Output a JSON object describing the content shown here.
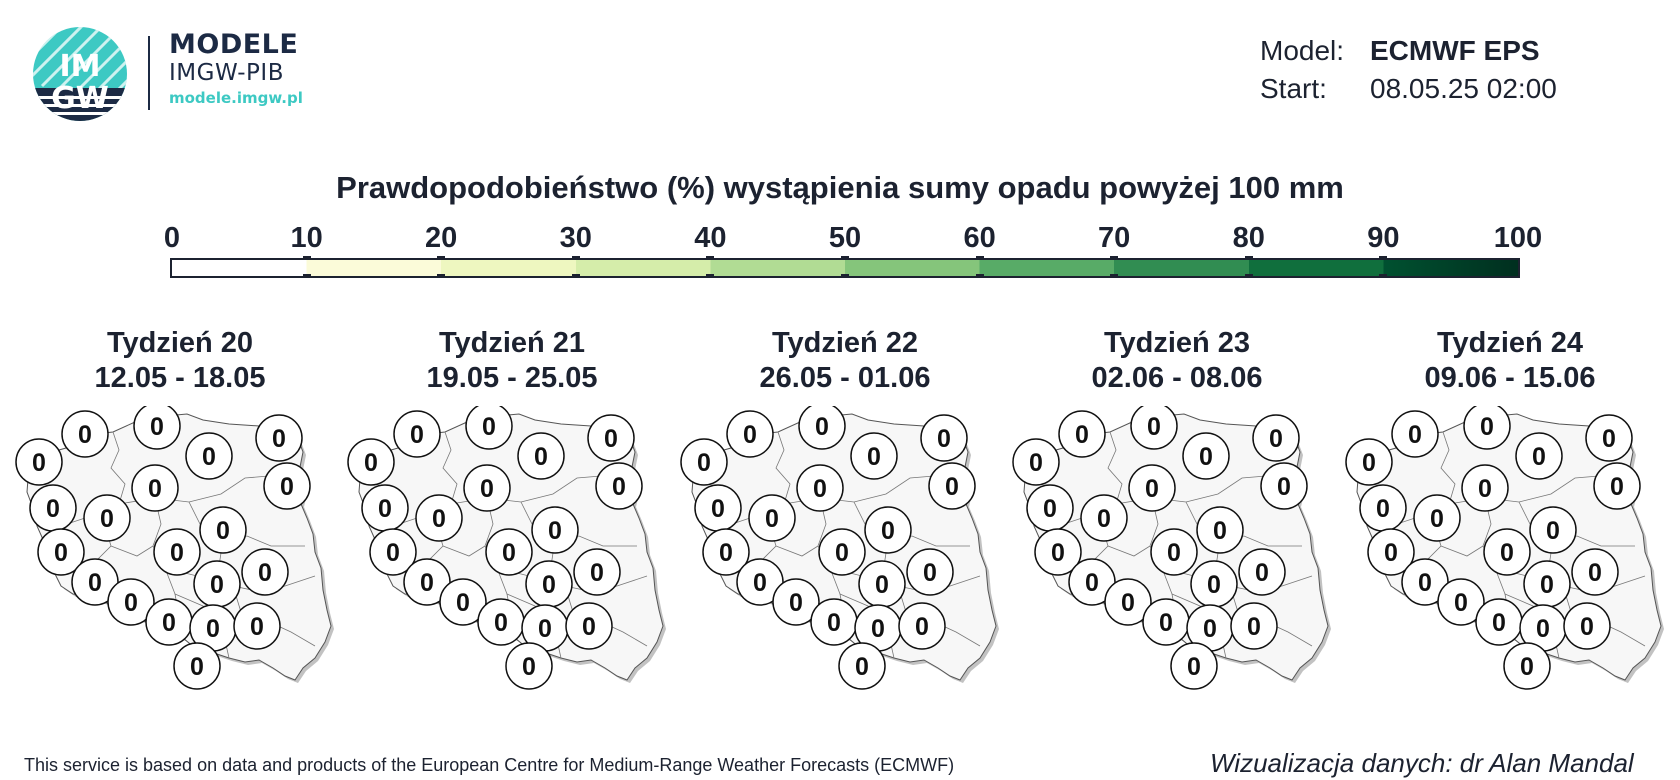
{
  "logo": {
    "badge_text_top": "IM",
    "badge_text_bottom": "GW",
    "title": "MODELE",
    "subtitle": "IMGW-PIB",
    "url": "modele.imgw.pl"
  },
  "meta": {
    "model_label": "Model:",
    "model_value": "ECMWF EPS",
    "start_label": "Start:",
    "start_value": "08.05.25 02:00"
  },
  "title": "Prawdopodobieństwo (%) wystąpienia sumy opadu powyżej 100 mm",
  "colorbar": {
    "ticks": [
      "0",
      "10",
      "20",
      "30",
      "40",
      "50",
      "60",
      "70",
      "80",
      "90",
      "100"
    ],
    "colors": [
      "#ffffff",
      "#fbfbd9",
      "#eef7c0",
      "#d5edaa",
      "#b1dc94",
      "#85c57b",
      "#58ab67",
      "#318d52",
      "#106f3d",
      "#005130",
      "#002f1f"
    ]
  },
  "panels": [
    {
      "week": "Tydzień 20",
      "dates": "12.05 - 18.05",
      "values": [
        "0",
        "0",
        "0",
        "0",
        "0",
        "0",
        "0",
        "0",
        "0",
        "0",
        "0",
        "0",
        "0",
        "0",
        "0",
        "0",
        "0",
        "0",
        "0",
        "0",
        "0"
      ]
    },
    {
      "week": "Tydzień 21",
      "dates": "19.05 - 25.05",
      "values": [
        "0",
        "0",
        "0",
        "0",
        "0",
        "0",
        "0",
        "0",
        "0",
        "0",
        "0",
        "0",
        "0",
        "0",
        "0",
        "0",
        "0",
        "0",
        "0",
        "0",
        "0"
      ]
    },
    {
      "week": "Tydzień 22",
      "dates": "26.05 - 01.06",
      "values": [
        "0",
        "0",
        "0",
        "0",
        "0",
        "0",
        "0",
        "0",
        "0",
        "0",
        "0",
        "0",
        "0",
        "0",
        "0",
        "0",
        "0",
        "0",
        "0",
        "0",
        "0"
      ]
    },
    {
      "week": "Tydzień 23",
      "dates": "02.06 - 08.06",
      "values": [
        "0",
        "0",
        "0",
        "0",
        "0",
        "0",
        "0",
        "0",
        "0",
        "0",
        "0",
        "0",
        "0",
        "0",
        "0",
        "0",
        "0",
        "0",
        "0",
        "0",
        "0"
      ]
    },
    {
      "week": "Tydzień 24",
      "dates": "09.06 - 15.06",
      "values": [
        "0",
        "0",
        "0",
        "0",
        "0",
        "0",
        "0",
        "0",
        "0",
        "0",
        "0",
        "0",
        "0",
        "0",
        "0",
        "0",
        "0",
        "0",
        "0",
        "0",
        "0"
      ]
    }
  ],
  "footer": {
    "disclaimer": "This service is based on data and products of the European Centre for Medium-Range Weather Forecasts (ECMWF)",
    "credit": "Wizualizacja danych: dr Alan Mandal"
  }
}
